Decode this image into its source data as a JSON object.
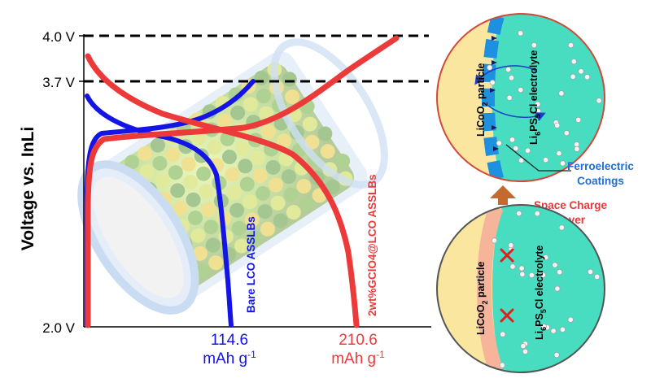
{
  "plot": {
    "ylabel": "Voltage vs. InLi",
    "ticks": [
      "4.0 V",
      "3.7 V",
      "2.0 V"
    ],
    "bare": {
      "series_label": "Bare LCO ASSLBs",
      "capacity_value": "114.6",
      "capacity_unit": "mAh g",
      "capacity_unit_sup": "-1",
      "color": "#1414e6"
    },
    "coated": {
      "series_label": "2wt%GClO4@LCO ASSLBs",
      "capacity_value": "210.6",
      "capacity_unit": "mAh g",
      "capacity_unit_sup": "-1",
      "color": "#ec3a3a"
    }
  },
  "top_circle": {
    "left_label": "LiCoO",
    "left_label_sub": "2",
    "left_label_tail": " particle",
    "right_label": "Li",
    "right_label_sub1": "6",
    "right_label_mid": "PS",
    "right_label_sub2": "5",
    "right_label_tail": "Cl electrolyte",
    "coating_label_line1": "Ferroelectric",
    "coating_label_line2": "Coatings"
  },
  "bottom_circle": {
    "space_charge_line1": "Space Charge",
    "space_charge_line2": "Layer",
    "left_label": "LiCoO",
    "left_label_sub": "2",
    "left_label_tail": " particle",
    "right_label": "Li",
    "right_label_sub1": "6",
    "right_label_mid": "PS",
    "right_label_sub2": "5",
    "right_label_tail": "Cl electrolyte"
  },
  "colors": {
    "cathode": "#fbe6a0",
    "electrolyte": "#48dcc0",
    "coating": "#1e90e0",
    "space_charge": "#f6b59a",
    "arrow": "#c46a2e",
    "x_mark": "#e02020"
  }
}
